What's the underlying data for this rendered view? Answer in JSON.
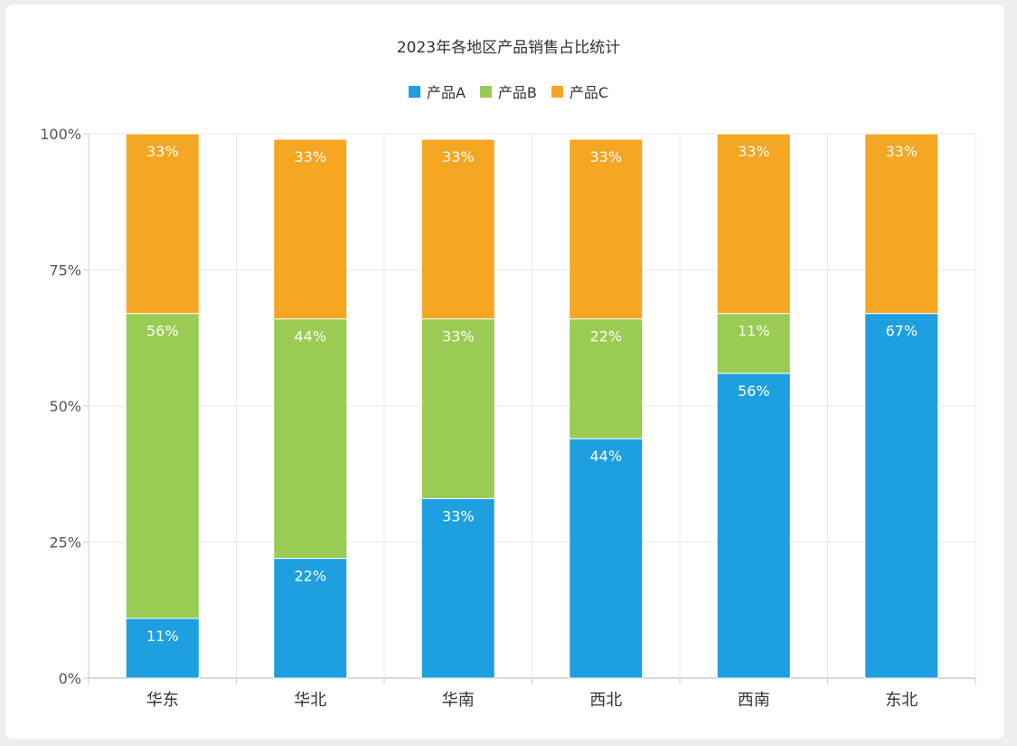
{
  "chart_data": {
    "type": "bar",
    "stacked": true,
    "title": "2023年各地区产品销售占比统计",
    "categories": [
      "华东",
      "华北",
      "华南",
      "西北",
      "西南",
      "东北"
    ],
    "series": [
      {
        "name": "产品A",
        "color": "#1e9fdf",
        "values": [
          11,
          22,
          33,
          44,
          56,
          67
        ]
      },
      {
        "name": "产品B",
        "color": "#9acb52",
        "values": [
          56,
          44,
          33,
          22,
          11,
          0
        ]
      },
      {
        "name": "产品C",
        "color": "#f5a623",
        "values": [
          33,
          33,
          33,
          33,
          33,
          33
        ]
      }
    ],
    "yticks": [
      "0%",
      "25%",
      "50%",
      "75%",
      "100%"
    ],
    "ylim": [
      0,
      100
    ],
    "legend_position": "top-center",
    "grid": true
  }
}
